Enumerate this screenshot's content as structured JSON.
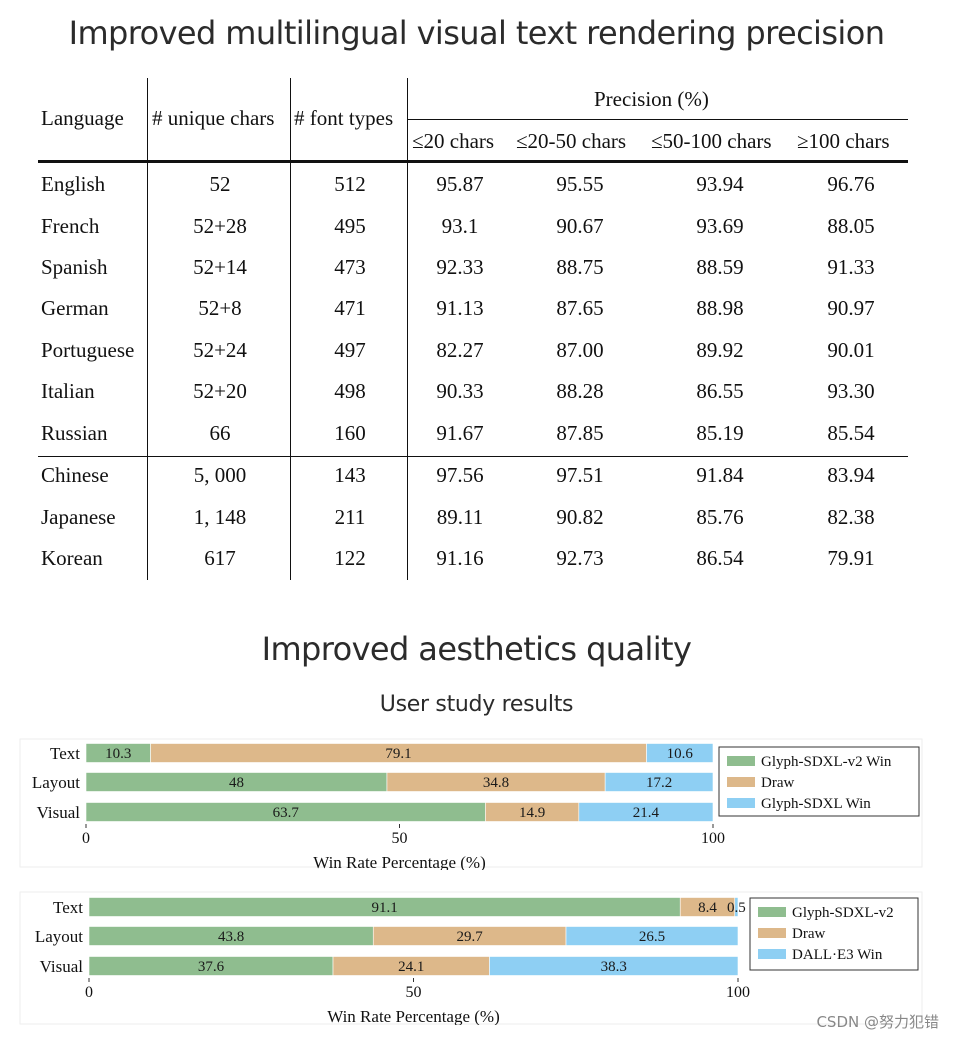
{
  "title": "Improved multilingual visual text rendering precision",
  "table": {
    "headers": {
      "language": "Language",
      "unique_chars": "# unique chars",
      "font_types": "# font types",
      "precision": "Precision (%)",
      "sub": [
        "≤20 chars",
        "≤20-50 chars",
        "≤50-100 chars",
        "≥100 chars"
      ]
    },
    "rows": [
      {
        "language": "English",
        "unique": "52",
        "fonts": "512",
        "p": [
          "95.87",
          "95.55",
          "93.94",
          "96.76"
        ]
      },
      {
        "language": "French",
        "unique": "52+28",
        "fonts": "495",
        "p": [
          "93.1",
          "90.67",
          "93.69",
          "88.05"
        ]
      },
      {
        "language": "Spanish",
        "unique": "52+14",
        "fonts": "473",
        "p": [
          "92.33",
          "88.75",
          "88.59",
          "91.33"
        ]
      },
      {
        "language": "German",
        "unique": "52+8",
        "fonts": "471",
        "p": [
          "91.13",
          "87.65",
          "88.98",
          "90.97"
        ]
      },
      {
        "language": "Portuguese",
        "unique": "52+24",
        "fonts": "497",
        "p": [
          "82.27",
          "87.00",
          "89.92",
          "90.01"
        ]
      },
      {
        "language": "Italian",
        "unique": "52+20",
        "fonts": "498",
        "p": [
          "90.33",
          "88.28",
          "86.55",
          "93.30"
        ]
      },
      {
        "language": "Russian",
        "unique": "66",
        "fonts": "160",
        "p": [
          "91.67",
          "87.85",
          "85.19",
          "85.54"
        ]
      },
      {
        "language": "Chinese",
        "unique": "5, 000",
        "fonts": "143",
        "p": [
          "97.56",
          "97.51",
          "91.84",
          "83.94"
        ]
      },
      {
        "language": "Japanese",
        "unique": "1, 148",
        "fonts": "211",
        "p": [
          "89.11",
          "90.82",
          "85.76",
          "82.38"
        ]
      },
      {
        "language": "Korean",
        "unique": "617",
        "fonts": "122",
        "p": [
          "91.16",
          "92.73",
          "86.54",
          "79.91"
        ]
      }
    ]
  },
  "section2_title": "Improved aesthetics quality",
  "subtitle": "User study results",
  "colors": {
    "green": "#8fbd8f",
    "tan": "#ddb88a",
    "blue": "#8ecff3"
  },
  "chart_data": [
    {
      "type": "bar",
      "orientation": "horizontal",
      "stacked": true,
      "categories": [
        "Text",
        "Layout",
        "Visual"
      ],
      "series": [
        {
          "name": "Glyph-SDXL-v2 Win",
          "values": [
            10.3,
            48,
            63.7
          ]
        },
        {
          "name": "Draw",
          "values": [
            79.1,
            34.8,
            14.9
          ]
        },
        {
          "name": "Glyph-SDXL Win",
          "values": [
            10.6,
            17.2,
            21.4
          ]
        }
      ],
      "xlabel": "Win Rate Percentage (%)",
      "xlim": [
        0,
        100
      ],
      "xticks": [
        "0",
        "50",
        "100"
      ],
      "legend": "right"
    },
    {
      "type": "bar",
      "orientation": "horizontal",
      "stacked": true,
      "categories": [
        "Text",
        "Layout",
        "Visual"
      ],
      "series": [
        {
          "name": "Glyph-SDXL-v2",
          "values": [
            91.1,
            43.8,
            37.6
          ]
        },
        {
          "name": "Draw",
          "values": [
            8.4,
            29.7,
            24.1
          ]
        },
        {
          "name": "DALL·E3 Win",
          "values": [
            0.5,
            26.5,
            38.3
          ]
        }
      ],
      "xlabel": "Win Rate Percentage (%)",
      "xlim": [
        0,
        100
      ],
      "xticks": [
        "0",
        "50",
        "100"
      ],
      "legend": "right"
    }
  ],
  "watermark": "CSDN @努力犯错"
}
